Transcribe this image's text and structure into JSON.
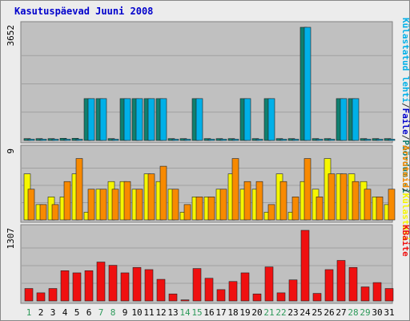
{
  "chart_data": {
    "type": "bar",
    "title": "Kasutuspäevad Juuni 2008",
    "days": [
      "1",
      "2",
      "3",
      "4",
      "5",
      "6",
      "7",
      "8",
      "9",
      "10",
      "11",
      "12",
      "13",
      "14",
      "15",
      "16",
      "17",
      "18",
      "19",
      "20",
      "21",
      "22",
      "23",
      "24",
      "25",
      "26",
      "27",
      "28",
      "29",
      "30",
      "31"
    ],
    "weekend_days": [
      "1",
      "7",
      "8",
      "14",
      "15",
      "21",
      "22",
      "28",
      "29"
    ],
    "colors": {
      "title": "#0000cc",
      "weekend": "#2d9a5a",
      "weekday": "#000000",
      "plot_bg": "#c0c0c0",
      "grid": "#a0a0a0",
      "pages_bar": "#00b0e8",
      "files_bar": "#0f7f6f",
      "hits_bar": "#f6f600",
      "visits_bar": "#f88a00",
      "kbytes_bar": "#ef1010"
    },
    "legend": {
      "top": [
        {
          "text": "Pöördumisi",
          "color": "#0f7f6f"
        },
        {
          "text": "/",
          "color": "#333333"
        },
        {
          "text": "Faile",
          "color": "#0000cc"
        },
        {
          "text": "/",
          "color": "#333333"
        },
        {
          "text": "Külastatud lehti",
          "color": "#00b0e8"
        }
      ],
      "middle": [
        {
          "text": "Külastusi",
          "color": "#f6f600"
        },
        {
          "text": "/",
          "color": "#333333"
        },
        {
          "text": "Arvuteid",
          "color": "#f88a00"
        }
      ],
      "bottom": [
        {
          "text": "KBaite",
          "color": "#ef1010"
        }
      ]
    },
    "panels": [
      {
        "name": "top",
        "ytick": "3652",
        "ymax": 3652,
        "series_a": [
          60,
          60,
          60,
          70,
          70,
          1350,
          1350,
          60,
          1350,
          1350,
          1350,
          1350,
          60,
          60,
          1350,
          60,
          60,
          60,
          1350,
          60,
          1350,
          60,
          60,
          3652,
          60,
          60,
          1350,
          1350,
          60,
          60,
          60
        ],
        "series_b": [
          40,
          40,
          40,
          40,
          40,
          1350,
          1350,
          40,
          1350,
          1350,
          1350,
          1350,
          40,
          40,
          1350,
          40,
          40,
          40,
          1350,
          40,
          1350,
          40,
          40,
          3652,
          40,
          40,
          1350,
          1350,
          40,
          40,
          40
        ]
      },
      {
        "name": "middle",
        "ytick": "9",
        "ymax": 9,
        "series_a": [
          6,
          2,
          3,
          3,
          6,
          1,
          4,
          5,
          5,
          4,
          6,
          5,
          4,
          1,
          3,
          3,
          4,
          6,
          4,
          4,
          1,
          6,
          1,
          5,
          4,
          8,
          6,
          6,
          5,
          3,
          2
        ],
        "series_b": [
          4,
          2,
          2,
          5,
          8,
          4,
          4,
          4,
          5,
          4,
          6,
          7,
          4,
          2,
          3,
          3,
          4,
          8,
          5,
          5,
          2,
          5,
          3,
          8,
          3,
          6,
          6,
          5,
          4,
          3,
          4
        ]
      },
      {
        "name": "bottom",
        "ytick": "1307",
        "ymax": 1307,
        "series_a": [
          230,
          150,
          230,
          560,
          520,
          560,
          720,
          660,
          520,
          620,
          580,
          400,
          130,
          20,
          600,
          420,
          210,
          360,
          520,
          130,
          630,
          150,
          390,
          1307,
          140,
          580,
          750,
          620,
          260,
          340,
          230
        ]
      }
    ]
  }
}
